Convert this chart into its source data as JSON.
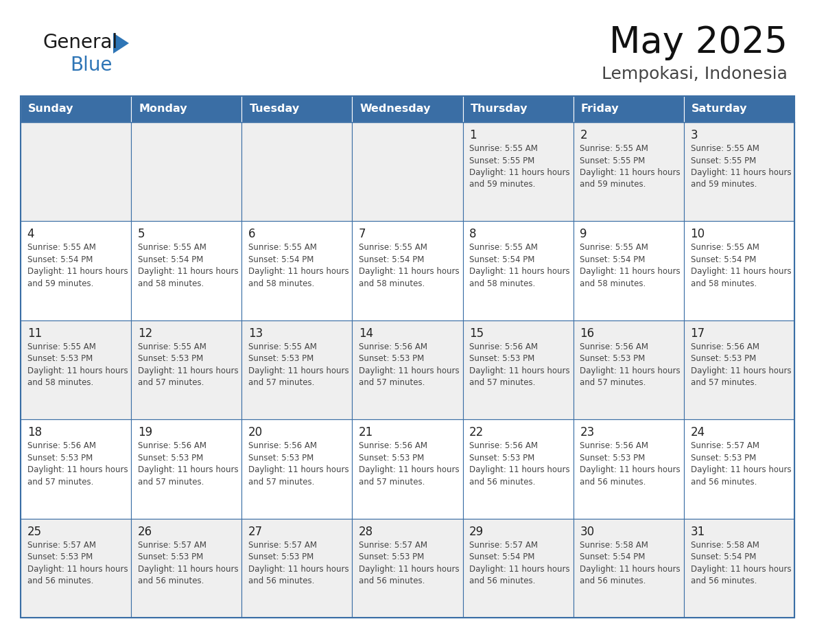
{
  "title": "May 2025",
  "subtitle": "Lempokasi, Indonesia",
  "days_of_week": [
    "Sunday",
    "Monday",
    "Tuesday",
    "Wednesday",
    "Thursday",
    "Friday",
    "Saturday"
  ],
  "header_bg": "#3A6EA5",
  "header_text": "#FFFFFF",
  "cell_bg_odd": "#EFEFEF",
  "cell_bg_even": "#FFFFFF",
  "day_num_color": "#222222",
  "text_color": "#444444",
  "grid_color": "#3A6EA5",
  "logo_general_color": "#1a1a1a",
  "logo_blue_color": "#2E75B6",
  "cal_data": [
    [
      {
        "day": 0,
        "sunrise": "",
        "sunset": "",
        "daylight": ""
      },
      {
        "day": 0,
        "sunrise": "",
        "sunset": "",
        "daylight": ""
      },
      {
        "day": 0,
        "sunrise": "",
        "sunset": "",
        "daylight": ""
      },
      {
        "day": 0,
        "sunrise": "",
        "sunset": "",
        "daylight": ""
      },
      {
        "day": 1,
        "sunrise": "5:55 AM",
        "sunset": "5:55 PM",
        "daylight": "11 hours and 59 minutes."
      },
      {
        "day": 2,
        "sunrise": "5:55 AM",
        "sunset": "5:55 PM",
        "daylight": "11 hours and 59 minutes."
      },
      {
        "day": 3,
        "sunrise": "5:55 AM",
        "sunset": "5:55 PM",
        "daylight": "11 hours and 59 minutes."
      }
    ],
    [
      {
        "day": 4,
        "sunrise": "5:55 AM",
        "sunset": "5:54 PM",
        "daylight": "11 hours and 59 minutes."
      },
      {
        "day": 5,
        "sunrise": "5:55 AM",
        "sunset": "5:54 PM",
        "daylight": "11 hours and 58 minutes."
      },
      {
        "day": 6,
        "sunrise": "5:55 AM",
        "sunset": "5:54 PM",
        "daylight": "11 hours and 58 minutes."
      },
      {
        "day": 7,
        "sunrise": "5:55 AM",
        "sunset": "5:54 PM",
        "daylight": "11 hours and 58 minutes."
      },
      {
        "day": 8,
        "sunrise": "5:55 AM",
        "sunset": "5:54 PM",
        "daylight": "11 hours and 58 minutes."
      },
      {
        "day": 9,
        "sunrise": "5:55 AM",
        "sunset": "5:54 PM",
        "daylight": "11 hours and 58 minutes."
      },
      {
        "day": 10,
        "sunrise": "5:55 AM",
        "sunset": "5:54 PM",
        "daylight": "11 hours and 58 minutes."
      }
    ],
    [
      {
        "day": 11,
        "sunrise": "5:55 AM",
        "sunset": "5:53 PM",
        "daylight": "11 hours and 58 minutes."
      },
      {
        "day": 12,
        "sunrise": "5:55 AM",
        "sunset": "5:53 PM",
        "daylight": "11 hours and 57 minutes."
      },
      {
        "day": 13,
        "sunrise": "5:55 AM",
        "sunset": "5:53 PM",
        "daylight": "11 hours and 57 minutes."
      },
      {
        "day": 14,
        "sunrise": "5:56 AM",
        "sunset": "5:53 PM",
        "daylight": "11 hours and 57 minutes."
      },
      {
        "day": 15,
        "sunrise": "5:56 AM",
        "sunset": "5:53 PM",
        "daylight": "11 hours and 57 minutes."
      },
      {
        "day": 16,
        "sunrise": "5:56 AM",
        "sunset": "5:53 PM",
        "daylight": "11 hours and 57 minutes."
      },
      {
        "day": 17,
        "sunrise": "5:56 AM",
        "sunset": "5:53 PM",
        "daylight": "11 hours and 57 minutes."
      }
    ],
    [
      {
        "day": 18,
        "sunrise": "5:56 AM",
        "sunset": "5:53 PM",
        "daylight": "11 hours and 57 minutes."
      },
      {
        "day": 19,
        "sunrise": "5:56 AM",
        "sunset": "5:53 PM",
        "daylight": "11 hours and 57 minutes."
      },
      {
        "day": 20,
        "sunrise": "5:56 AM",
        "sunset": "5:53 PM",
        "daylight": "11 hours and 57 minutes."
      },
      {
        "day": 21,
        "sunrise": "5:56 AM",
        "sunset": "5:53 PM",
        "daylight": "11 hours and 57 minutes."
      },
      {
        "day": 22,
        "sunrise": "5:56 AM",
        "sunset": "5:53 PM",
        "daylight": "11 hours and 56 minutes."
      },
      {
        "day": 23,
        "sunrise": "5:56 AM",
        "sunset": "5:53 PM",
        "daylight": "11 hours and 56 minutes."
      },
      {
        "day": 24,
        "sunrise": "5:57 AM",
        "sunset": "5:53 PM",
        "daylight": "11 hours and 56 minutes."
      }
    ],
    [
      {
        "day": 25,
        "sunrise": "5:57 AM",
        "sunset": "5:53 PM",
        "daylight": "11 hours and 56 minutes."
      },
      {
        "day": 26,
        "sunrise": "5:57 AM",
        "sunset": "5:53 PM",
        "daylight": "11 hours and 56 minutes."
      },
      {
        "day": 27,
        "sunrise": "5:57 AM",
        "sunset": "5:53 PM",
        "daylight": "11 hours and 56 minutes."
      },
      {
        "day": 28,
        "sunrise": "5:57 AM",
        "sunset": "5:53 PM",
        "daylight": "11 hours and 56 minutes."
      },
      {
        "day": 29,
        "sunrise": "5:57 AM",
        "sunset": "5:54 PM",
        "daylight": "11 hours and 56 minutes."
      },
      {
        "day": 30,
        "sunrise": "5:58 AM",
        "sunset": "5:54 PM",
        "daylight": "11 hours and 56 minutes."
      },
      {
        "day": 31,
        "sunrise": "5:58 AM",
        "sunset": "5:54 PM",
        "daylight": "11 hours and 56 minutes."
      }
    ]
  ]
}
